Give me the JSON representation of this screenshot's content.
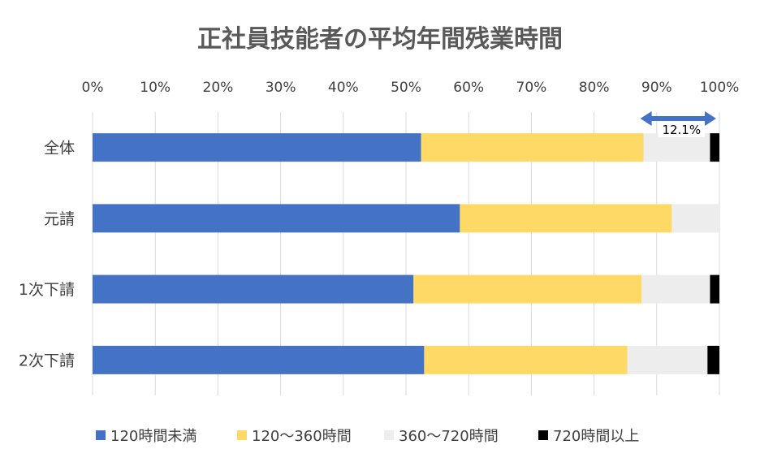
{
  "chart_data": {
    "type": "bar",
    "orientation": "horizontal",
    "stacked": true,
    "title": "正社員技能者の平均年間残業時間",
    "categories": [
      "全体",
      "元請",
      "1次下請",
      "2次下請"
    ],
    "x_ticks": [
      "0%",
      "10%",
      "20%",
      "30%",
      "40%",
      "50%",
      "60%",
      "70%",
      "80%",
      "90%",
      "100%"
    ],
    "xlim": [
      0,
      100
    ],
    "x_axis_position": "top",
    "grid": true,
    "legend_position": "bottom",
    "series": [
      {
        "name": "120時間未満",
        "color": "#4472C4",
        "values": [
          52.4,
          58.6,
          51.2,
          52.9
        ]
      },
      {
        "name": "120～360時間",
        "color": "#FFD966",
        "values": [
          35.5,
          33.8,
          36.4,
          32.4
        ]
      },
      {
        "name": "360～720時間",
        "color": "#EDEDED",
        "values": [
          10.6,
          7.6,
          10.9,
          12.8
        ]
      },
      {
        "name": "720時間以上",
        "color": "#000000",
        "values": [
          1.5,
          0.0,
          1.5,
          1.9
        ]
      }
    ],
    "annotation": {
      "text": "12.1%",
      "category": "全体",
      "range": [
        87.9,
        100
      ]
    }
  }
}
